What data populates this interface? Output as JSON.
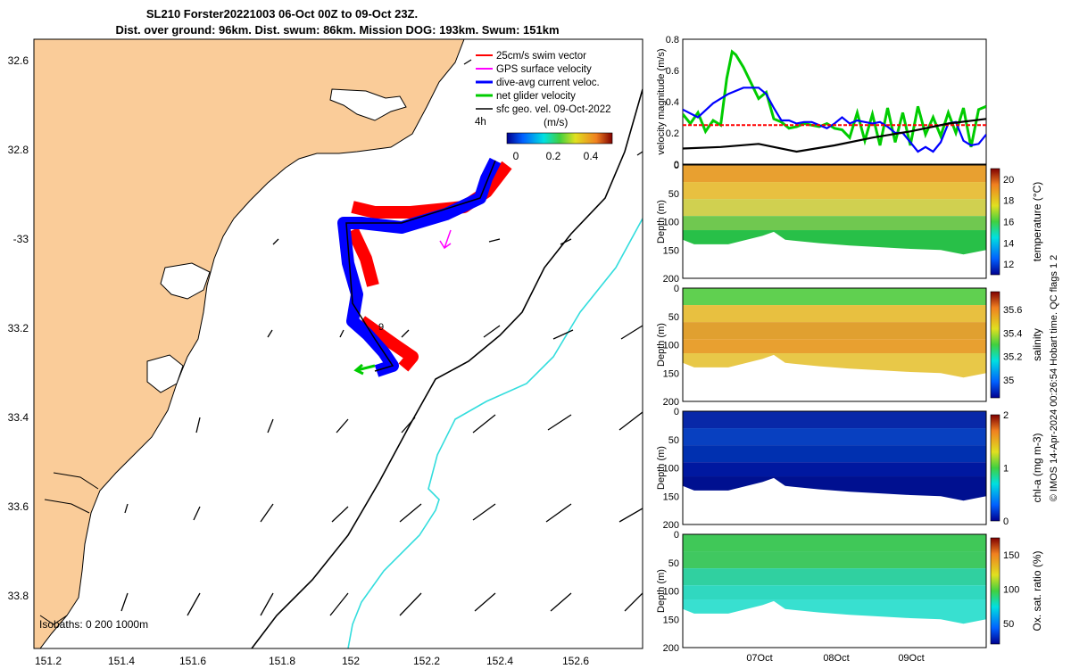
{
  "title": {
    "line1": "SL210 Forster20221003 06-Oct 00Z to 09-Oct 23Z.",
    "line2": "Dist. over ground: 96km. Dist. swum: 86km. Mission DOG: 193km. Swum: 151km"
  },
  "colors": {
    "land": "#FACC99",
    "swim": "#FF0000",
    "gps": "#FF00FF",
    "current": "#0000FF",
    "net": "#00CC00",
    "sfcgeo": "#000000",
    "isobath200": "#000000",
    "isobath1000": "#33DDDD"
  },
  "map": {
    "lon_ticks": [
      "151.2",
      "151.4",
      "151.6",
      "151.8",
      "152",
      "152.2",
      "152.4",
      "152.6"
    ],
    "lat_ticks": [
      "32.6",
      "32.8",
      "-33",
      "33.2",
      "33.4",
      "33.6",
      "33.8"
    ],
    "legend": [
      "25cm/s swim vector",
      "GPS surface velocity",
      "dive-avg current veloc.",
      "net glider velocity",
      "sfc geo. vel. 09-Oct-2022"
    ],
    "colorbar_label": "(m/s)",
    "colorbar_ticks": [
      "0",
      "0.2",
      "0.4"
    ],
    "colorbar_annot": "4h",
    "isobaths_label": "Isobaths: 0   200  1000m",
    "track_label": "9"
  },
  "chart_data": [
    {
      "type": "line",
      "name": "velocity magnitude",
      "ylabel": "velocity magnitude (m/s)",
      "ylim": [
        0,
        0.8
      ],
      "yticks": [
        "0",
        "0.2",
        "0.4",
        "0.6",
        "0.8"
      ],
      "xlim": [
        0,
        4
      ],
      "x_unit": "days since 06-Oct 00Z",
      "series": [
        {
          "name": "net glider velocity",
          "color": "#00CC00",
          "x": [
            0,
            0.1,
            0.2,
            0.3,
            0.4,
            0.5,
            0.58,
            0.65,
            0.7,
            0.8,
            0.9,
            1.0,
            1.1,
            1.2,
            1.3,
            1.4,
            1.5,
            1.6,
            1.7,
            1.8,
            1.9,
            2.0,
            2.1,
            2.2,
            2.3,
            2.4,
            2.5,
            2.6,
            2.7,
            2.8,
            2.9,
            3.0,
            3.1,
            3.2,
            3.3,
            3.4,
            3.5,
            3.6,
            3.7,
            3.8,
            3.9,
            4.0
          ],
          "values": [
            0.32,
            0.26,
            0.33,
            0.21,
            0.28,
            0.25,
            0.55,
            0.72,
            0.7,
            0.62,
            0.52,
            0.42,
            0.46,
            0.29,
            0.27,
            0.23,
            0.24,
            0.26,
            0.25,
            0.24,
            0.26,
            0.23,
            0.22,
            0.17,
            0.33,
            0.15,
            0.32,
            0.12,
            0.36,
            0.14,
            0.33,
            0.12,
            0.37,
            0.19,
            0.3,
            0.18,
            0.33,
            0.2,
            0.36,
            0.11,
            0.35,
            0.37
          ]
        },
        {
          "name": "dive-avg current veloc.",
          "color": "#0000FF",
          "x": [
            0,
            0.2,
            0.4,
            0.6,
            0.8,
            1.0,
            1.1,
            1.2,
            1.3,
            1.4,
            1.5,
            1.6,
            1.7,
            1.8,
            1.9,
            2.0,
            2.1,
            2.2,
            2.3,
            2.4,
            2.5,
            2.6,
            2.7,
            2.8,
            2.9,
            3.0,
            3.1,
            3.2,
            3.3,
            3.4,
            3.5,
            3.6,
            3.7,
            3.8,
            3.9,
            4.0
          ],
          "values": [
            0.35,
            0.3,
            0.39,
            0.45,
            0.49,
            0.49,
            0.45,
            0.36,
            0.28,
            0.28,
            0.26,
            0.27,
            0.27,
            0.25,
            0.23,
            0.26,
            0.3,
            0.26,
            0.28,
            0.27,
            0.26,
            0.27,
            0.24,
            0.2,
            0.2,
            0.14,
            0.08,
            0.11,
            0.08,
            0.14,
            0.26,
            0.27,
            0.15,
            0.12,
            0.13,
            0.19
          ]
        },
        {
          "name": "25cm/s swim vector",
          "color": "#FF0000",
          "x": [
            0,
            4
          ],
          "values": [
            0.25,
            0.25
          ]
        },
        {
          "name": "sfc geo. vel.",
          "color": "#000000",
          "x": [
            0,
            0.5,
            1.0,
            1.5,
            2.0,
            2.5,
            3.0,
            3.5,
            4.0
          ],
          "values": [
            0.1,
            0.11,
            0.13,
            0.08,
            0.12,
            0.17,
            0.21,
            0.26,
            0.29
          ]
        }
      ]
    },
    {
      "type": "heatmap",
      "name": "temperature",
      "ylabel": "Depth (m)",
      "yticks": [
        "0",
        "50",
        "100",
        "150",
        "200"
      ],
      "colorbar_label": "temperature (°C)",
      "colorbar_ticks": [
        "12",
        "14",
        "16",
        "18",
        "20"
      ],
      "clim": [
        11,
        21
      ]
    },
    {
      "type": "heatmap",
      "name": "salinity",
      "ylabel": "Depth (m)",
      "yticks": [
        "0",
        "50",
        "100",
        "150",
        "200"
      ],
      "colorbar_label": "salinity",
      "colorbar_ticks": [
        "35",
        "35.2",
        "35.4",
        "35.6"
      ],
      "clim": [
        34.85,
        35.75
      ]
    },
    {
      "type": "heatmap",
      "name": "chl-a",
      "ylabel": "Depth (m)",
      "yticks": [
        "0",
        "50",
        "100",
        "150",
        "200"
      ],
      "colorbar_label": "chl-a (mg m-3)",
      "colorbar_ticks": [
        "0",
        "1",
        "2"
      ],
      "clim": [
        0,
        2
      ]
    },
    {
      "type": "heatmap",
      "name": "oxygen saturation",
      "ylabel": "Depth (m)",
      "yticks": [
        "0",
        "50",
        "100",
        "150",
        "200"
      ],
      "colorbar_label": "Ox. sat. ratio (%)",
      "colorbar_ticks": [
        "50",
        "100",
        "150"
      ],
      "clim": [
        20,
        175
      ],
      "xticks": [
        "07Oct",
        "08Oct",
        "09Oct"
      ]
    }
  ],
  "footer": "© IMOS 14-Apr-2024 00:26:54 Hobart time. QC flags 1  2"
}
